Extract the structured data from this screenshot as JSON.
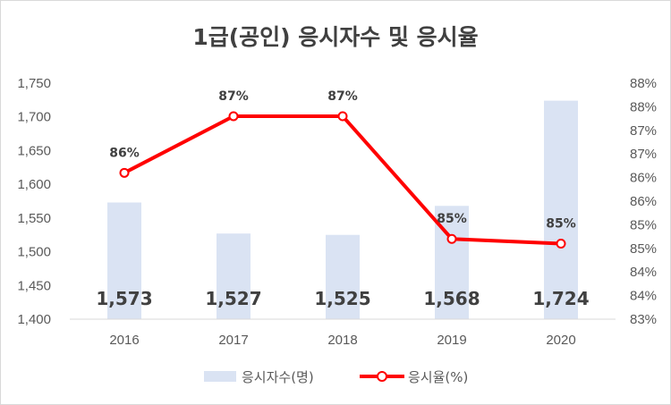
{
  "title": "1급(공인) 응시자수 및 응시율",
  "colors": {
    "bars": "#dae3f3",
    "line": "#ff0000",
    "text": "#404040",
    "axis": "#595959",
    "grid": "#d9d9d9"
  },
  "legend": {
    "bars_label": "응시자수(명)",
    "line_label": "응시율(%)"
  },
  "chart_data": {
    "type": "bar+line",
    "title": "1급(공인) 응시자수 및 응시율",
    "categories": [
      "2016",
      "2017",
      "2018",
      "2019",
      "2020"
    ],
    "series": [
      {
        "name": "응시자수(명)",
        "type": "bar",
        "axis": "left",
        "values": [
          1573,
          1527,
          1525,
          1568,
          1724
        ],
        "data_labels": [
          "1,573",
          "1,527",
          "1,525",
          "1,568",
          "1,724"
        ]
      },
      {
        "name": "응시율(%)",
        "type": "line",
        "axis": "right",
        "values": [
          86.1,
          87.3,
          87.3,
          84.7,
          84.6
        ],
        "data_labels": [
          "86%",
          "87%",
          "87%",
          "85%",
          "85%"
        ]
      }
    ],
    "y_left": {
      "min": 1400,
      "max": 1750,
      "ticks": [
        1400,
        1450,
        1500,
        1550,
        1600,
        1650,
        1700,
        1750
      ],
      "tick_labels": [
        "1,400",
        "1,450",
        "1,500",
        "1,550",
        "1,600",
        "1,650",
        "1,700",
        "1,750"
      ]
    },
    "y_right": {
      "min": 83,
      "max": 88,
      "ticks": [
        83,
        83.5,
        84,
        84.5,
        85,
        85.5,
        86,
        86.5,
        87,
        87.5,
        88
      ],
      "tick_labels": [
        "83%",
        "84%",
        "84%",
        "85%",
        "85%",
        "86%",
        "86%",
        "87%",
        "87%",
        "88%",
        "88%"
      ]
    },
    "grid": false,
    "legend_position": "bottom"
  }
}
